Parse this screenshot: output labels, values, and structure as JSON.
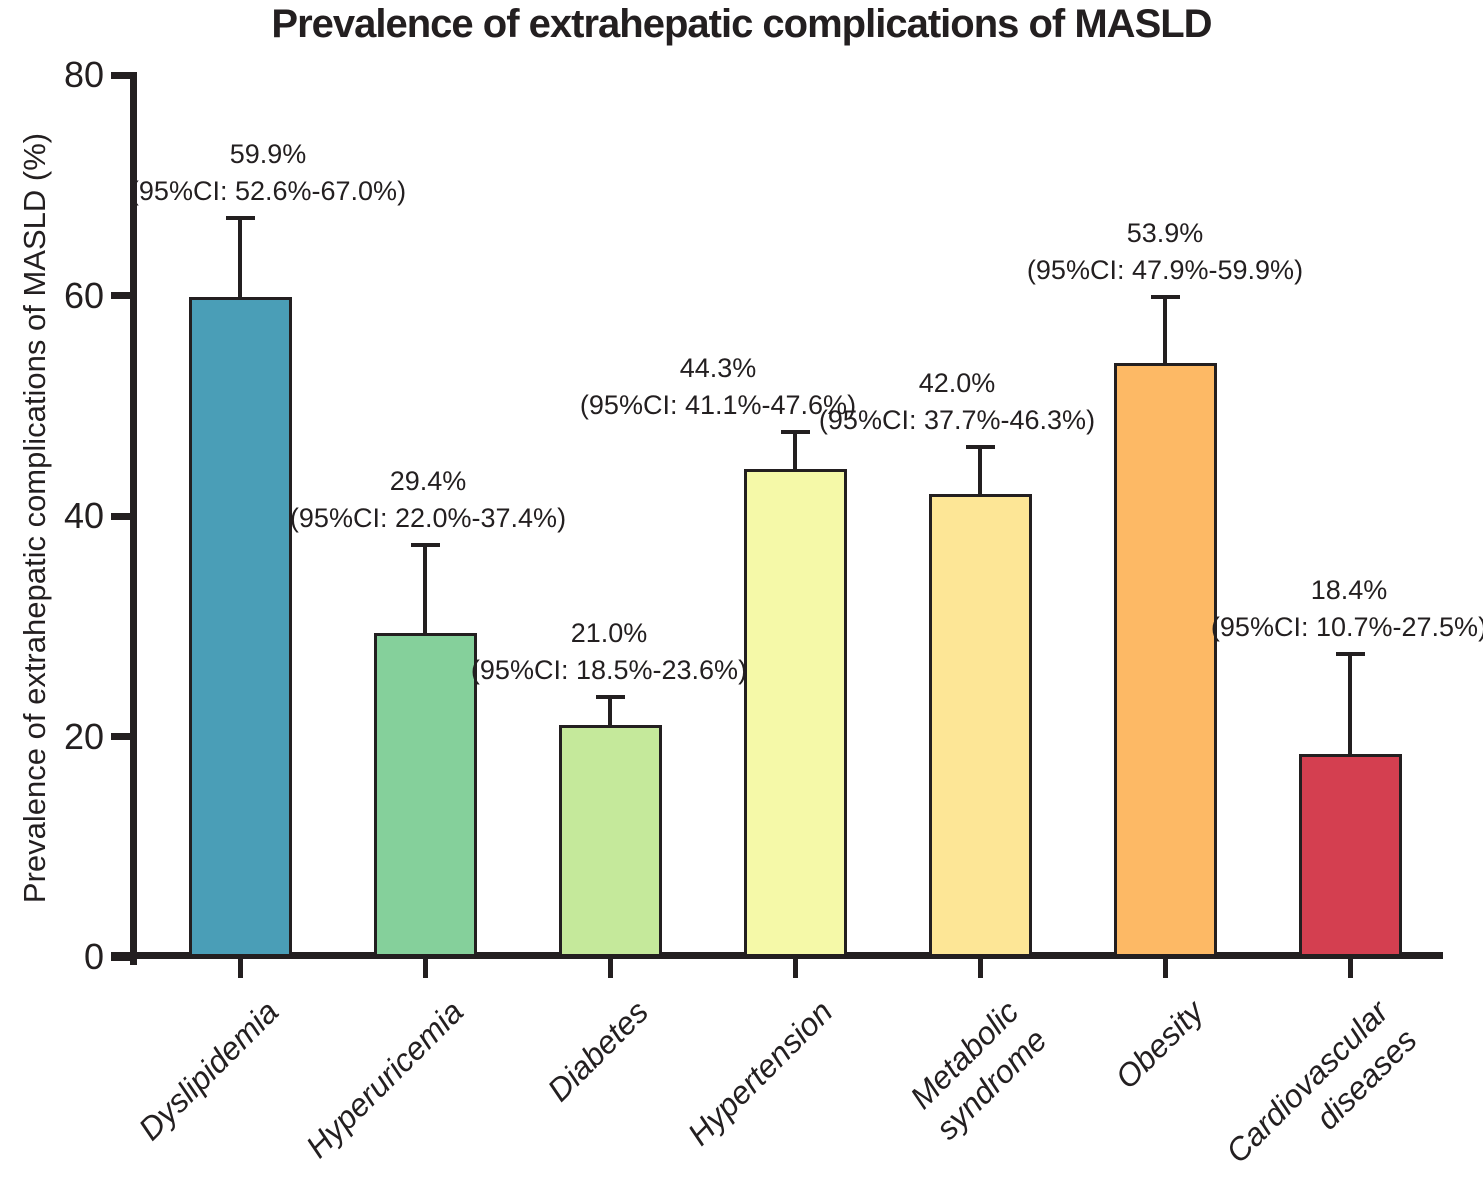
{
  "title": "Prevalence of extrahepatic complications of MASLD",
  "chart_data": {
    "type": "bar",
    "title": "Prevalence of extrahepatic complications of MASLD",
    "xlabel": "",
    "ylabel": "Prevalence of extrahepatic complications of MASLD (%)",
    "ylim": [
      0,
      80
    ],
    "yticks": [
      0,
      20,
      40,
      60,
      80
    ],
    "grid": false,
    "legend": "none",
    "ink_color": "#231f20",
    "categories": [
      "Dyslipidemia",
      "Hyperuricemia",
      "Diabetes",
      "Hypertension",
      "Metabolic syndrome",
      "Obesity",
      "Cardiovascular diseases"
    ],
    "bars": [
      {
        "label_lines": [
          "Dyslipidemia"
        ],
        "value": 59.9,
        "ci_low": 52.6,
        "ci_high": 67.0,
        "value_label": "59.9%",
        "ci_label": "(95%CI: 52.6%-67.0%)",
        "color": "#4a9eb7"
      },
      {
        "label_lines": [
          "Hyperuricemia"
        ],
        "value": 29.4,
        "ci_low": 22.0,
        "ci_high": 37.4,
        "value_label": "29.4%",
        "ci_label": "(95%CI: 22.0%-37.4%)",
        "color": "#85d09b"
      },
      {
        "label_lines": [
          "Diabetes"
        ],
        "value": 21.0,
        "ci_low": 18.5,
        "ci_high": 23.6,
        "value_label": "21.0%",
        "ci_label": "(95%CI: 18.5%-23.6%)",
        "color": "#c5e99b"
      },
      {
        "label_lines": [
          "Hypertension"
        ],
        "value": 44.3,
        "ci_low": 41.1,
        "ci_high": 47.6,
        "value_label": "44.3%",
        "ci_label": "(95%CI: 41.1%-47.6%)",
        "color": "#f5f9a8"
      },
      {
        "label_lines": [
          "Metabolic",
          "syndrome"
        ],
        "value": 42.0,
        "ci_low": 37.7,
        "ci_high": 46.3,
        "value_label": "42.0%",
        "ci_label": "(95%CI: 37.7%-46.3%)",
        "color": "#fde696"
      },
      {
        "label_lines": [
          "Obesity"
        ],
        "value": 53.9,
        "ci_low": 47.9,
        "ci_high": 59.9,
        "value_label": "53.9%",
        "ci_label": "(95%CI: 47.9%-59.9%)",
        "color": "#fdb965"
      },
      {
        "label_lines": [
          "Cardiovascular",
          "diseases"
        ],
        "value": 18.4,
        "ci_low": 10.7,
        "ci_high": 27.5,
        "value_label": "18.4%",
        "ci_label": "(95%CI: 10.7%-27.5%)",
        "color": "#d43f50"
      }
    ]
  }
}
